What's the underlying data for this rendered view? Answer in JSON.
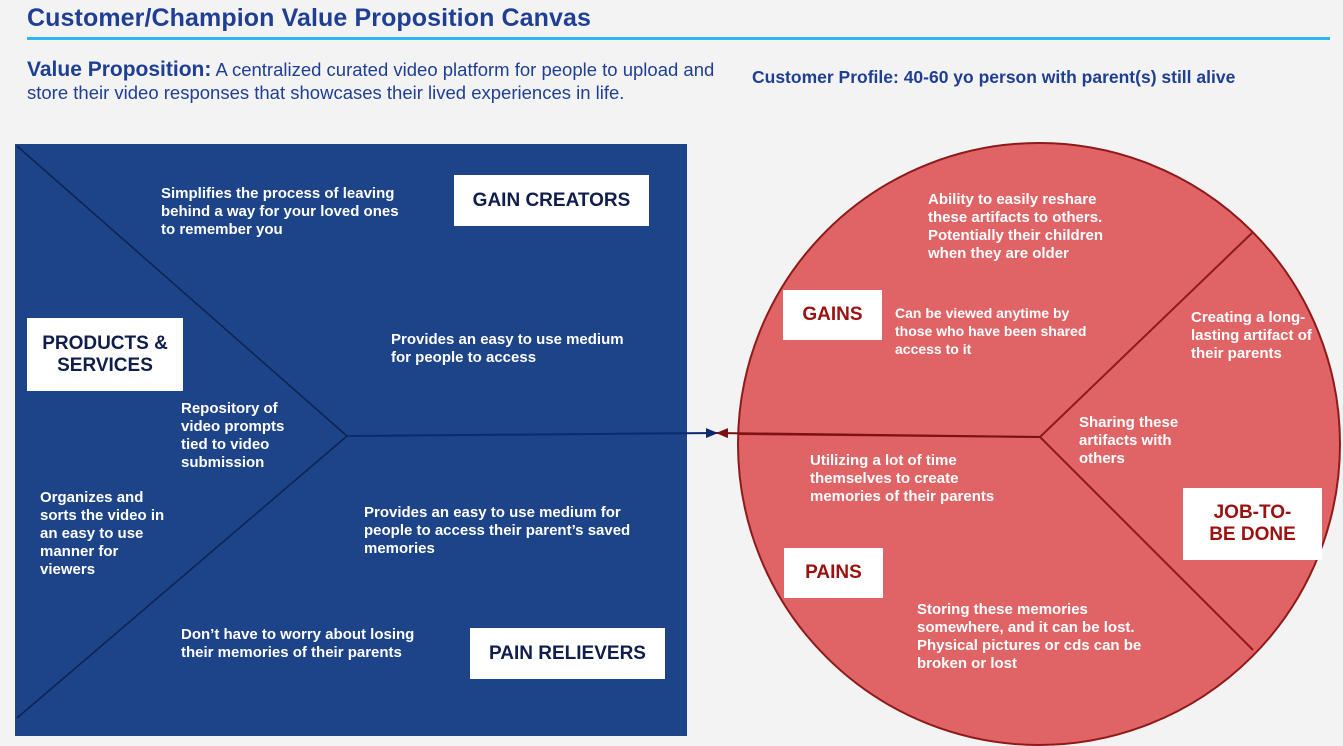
{
  "header": {
    "title": "Customer/Champion Value Proposition Canvas"
  },
  "value_proposition": {
    "label": "Value Proposition:",
    "text": "A centralized curated video platform for people to upload and store their video responses that showcases their lived experiences in life."
  },
  "customer_profile": {
    "text": "Customer Profile: 40-60 yo person with parent(s) still alive"
  },
  "value_map": {
    "gain_creators_label": "GAIN CREATORS",
    "products_services_label": "PRODUCTS & SERVICES",
    "pain_relievers_label": "PAIN RELIEVERS",
    "gain_creator_1": "Simplifies the process of leaving behind a way for your loved ones to remember you",
    "gain_creator_2": "Provides an easy to use medium for people to access",
    "product_1": "Repository of video prompts tied to video submission",
    "product_2": "Organizes and sorts the video in an easy to use manner for viewers",
    "pain_reliever_1": "Provides an easy to use medium for people to access their parent’s saved memories",
    "pain_reliever_2": "Don’t have to worry about losing their memories of their parents"
  },
  "customer_map": {
    "gains_label": "GAINS",
    "pains_label": "PAINS",
    "job_label": "JOB-TO-BE DONE",
    "gain_1": "Ability to easily reshare these artifacts to others. Potentially their children when they are older",
    "gain_2": "Can be viewed anytime by those who have been shared access to it",
    "job_1": "Creating a long-lasting artifact of their parents",
    "job_2": "Sharing these artifacts with others",
    "pain_1": "Utilizing a lot of time themselves to create memories of their parents",
    "pain_2": "Storing these memories somewhere, and it can be lost. Physical pictures or cds can be broken or lost"
  },
  "colors": {
    "title_blue": "#1f3f94",
    "accent_rule": "#2bb8ee",
    "value_map_bg": "#1d4389",
    "customer_circle": "#e06466",
    "customer_label_red": "#9c1010",
    "arrow_blue": "#0d2a6e",
    "arrow_red": "#7a1212"
  }
}
